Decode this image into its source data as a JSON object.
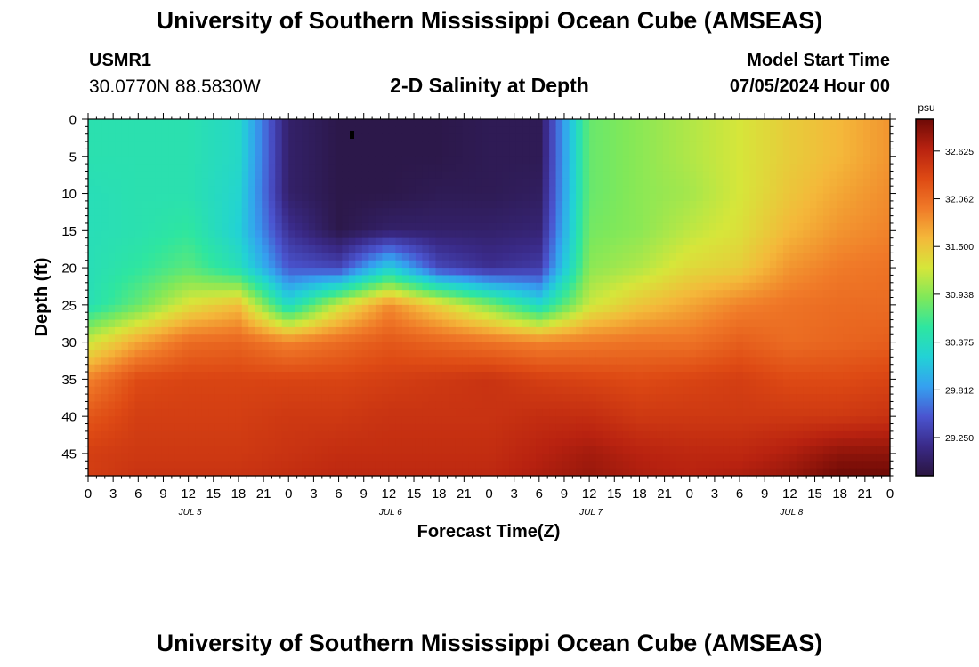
{
  "header": {
    "title": "University of Southern Mississippi Ocean Cube (AMSEAS)",
    "station_id": "USMR1",
    "station_coords": "30.0770N  88.5830W",
    "plot_title": "2-D Salinity at Depth",
    "model_start_label": "Model Start Time",
    "model_start_time": "07/05/2024 Hour 00"
  },
  "footer": {
    "title": "University of Southern Mississippi Ocean Cube (AMSEAS)"
  },
  "chart_data": {
    "type": "heatmap",
    "title": "2-D Salinity at Depth",
    "xlabel": "Forecast Time(Z)",
    "ylabel": "Depth (ft)",
    "x_range_hours": [
      0,
      96
    ],
    "y_range_ft": [
      0,
      48
    ],
    "y_ticks": [
      0,
      5,
      10,
      15,
      20,
      25,
      30,
      35,
      40,
      45
    ],
    "x_tick_hours": [
      0,
      3,
      6,
      9,
      12,
      15,
      18,
      21,
      24,
      27,
      30,
      33,
      36,
      39,
      42,
      45,
      48,
      51,
      54,
      57,
      60,
      63,
      66,
      69,
      72,
      75,
      78,
      81,
      84,
      87,
      90,
      93,
      96
    ],
    "x_tick_labels": [
      "0",
      "3",
      "6",
      "9",
      "12",
      "15",
      "18",
      "21",
      "0",
      "3",
      "6",
      "9",
      "12",
      "15",
      "18",
      "21",
      "0",
      "3",
      "6",
      "9",
      "12",
      "15",
      "18",
      "21",
      "0",
      "3",
      "6",
      "9",
      "12",
      "15",
      "18",
      "21",
      "0"
    ],
    "day_labels": [
      {
        "hour": 12,
        "text": "JUL 5"
      },
      {
        "hour": 36,
        "text": "JUL 6"
      },
      {
        "hour": 60,
        "text": "JUL 7"
      },
      {
        "hour": 84,
        "text": "JUL 8"
      }
    ],
    "colorbar": {
      "unit": "psu",
      "range": [
        28.8,
        33.0
      ],
      "ticks": [
        29.25,
        29.812,
        30.375,
        30.938,
        31.5,
        32.062,
        32.625
      ],
      "tick_labels": [
        "29.250",
        "29.812",
        "30.375",
        "30.938",
        "31.500",
        "32.062",
        "32.625"
      ],
      "colors": [
        "#2a1540",
        "#3a2a88",
        "#4a55d0",
        "#35a0f0",
        "#22d2d6",
        "#2ee6a0",
        "#7fe85a",
        "#d6e63a",
        "#f4b83a",
        "#f07a28",
        "#de4a14",
        "#b82210",
        "#6e0a06"
      ]
    },
    "salinity_psu": {
      "columns_hour": [
        0,
        6,
        12,
        18,
        24,
        30,
        36,
        42,
        48,
        54,
        60,
        66,
        72,
        78,
        84,
        90,
        96
      ],
      "rows_depth_ft": [
        0,
        5,
        10,
        15,
        20,
        25,
        30,
        35,
        40,
        45,
        48
      ],
      "values": [
        [
          30.45,
          30.45,
          30.45,
          30.3,
          29.0,
          28.85,
          28.85,
          28.85,
          28.9,
          28.9,
          30.8,
          30.95,
          31.1,
          31.25,
          31.45,
          31.6,
          31.8
        ],
        [
          30.45,
          30.45,
          30.45,
          30.3,
          29.0,
          28.85,
          28.85,
          28.85,
          28.9,
          28.9,
          30.8,
          30.95,
          31.1,
          31.25,
          31.45,
          31.6,
          31.8
        ],
        [
          30.4,
          30.45,
          30.45,
          30.25,
          29.0,
          28.85,
          28.85,
          28.9,
          28.9,
          28.95,
          30.8,
          30.95,
          31.05,
          31.25,
          31.5,
          31.7,
          31.85
        ],
        [
          30.4,
          30.45,
          30.55,
          30.2,
          29.2,
          28.85,
          29.0,
          29.0,
          29.0,
          29.05,
          30.85,
          30.95,
          31.15,
          31.3,
          31.6,
          31.8,
          31.9
        ],
        [
          30.4,
          30.55,
          30.75,
          30.4,
          29.5,
          29.4,
          30.2,
          29.4,
          29.2,
          29.3,
          30.95,
          31.1,
          31.35,
          31.45,
          31.8,
          31.95,
          32.0
        ],
        [
          30.4,
          30.8,
          31.3,
          31.55,
          30.3,
          31.2,
          31.85,
          31.4,
          30.9,
          30.3,
          31.2,
          31.5,
          31.7,
          31.9,
          32.0,
          32.05,
          32.05
        ],
        [
          31.2,
          31.7,
          32.05,
          32.1,
          31.9,
          32.05,
          32.2,
          32.1,
          32.0,
          31.9,
          31.95,
          32.0,
          32.0,
          32.15,
          32.05,
          32.1,
          32.15
        ],
        [
          31.9,
          32.3,
          32.35,
          32.35,
          32.35,
          32.35,
          32.4,
          32.45,
          32.5,
          32.4,
          32.35,
          32.3,
          32.35,
          32.4,
          32.3,
          32.3,
          32.35
        ],
        [
          32.2,
          32.4,
          32.4,
          32.4,
          32.45,
          32.45,
          32.5,
          32.5,
          32.5,
          32.55,
          32.55,
          32.45,
          32.45,
          32.45,
          32.45,
          32.45,
          32.5
        ],
        [
          32.4,
          32.45,
          32.45,
          32.45,
          32.5,
          32.55,
          32.55,
          32.55,
          32.55,
          32.65,
          32.75,
          32.65,
          32.6,
          32.6,
          32.7,
          32.85,
          32.85
        ],
        [
          32.4,
          32.5,
          32.5,
          32.5,
          32.55,
          32.6,
          32.6,
          32.6,
          32.6,
          32.7,
          32.8,
          32.7,
          32.65,
          32.7,
          32.8,
          33.0,
          33.0
        ]
      ]
    }
  }
}
